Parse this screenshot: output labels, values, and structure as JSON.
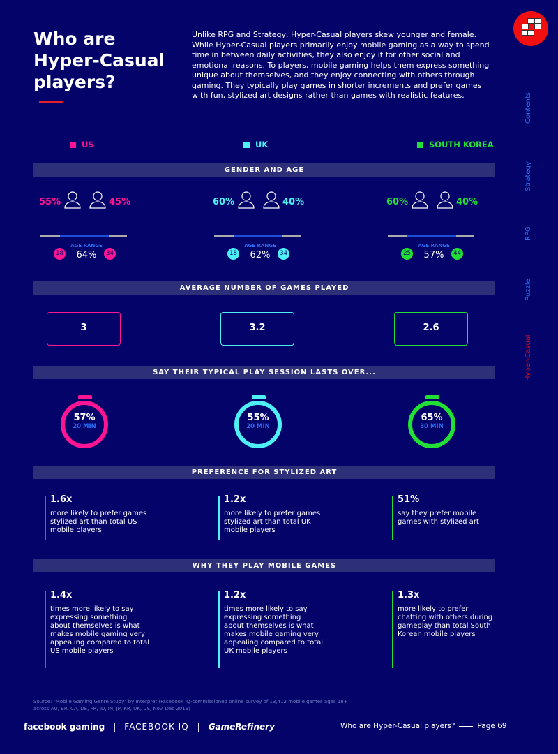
{
  "title": "Who are Hyper-Casual players?",
  "intro": "Unlike RPG and Strategy, Hyper-Casual players skew younger and female. While Hyper-Casual players primarily enjoy mobile gaming as a way to spend time in between daily activities, they also enjoy it for other social and emotional reasons. To players, mobile gaming helps them express something unique about themselves, and they enjoy connecting with others through gaming. They typically play games in shorter increments and prefer games with fun, stylized art designs rather than games with realistic features.",
  "side_nav": [
    "Contents",
    "Strategy",
    "RPG",
    "Puzzle",
    "Hyper-Casual"
  ],
  "side_nav_active": "Hyper-Casual",
  "colors": {
    "background": "#03036a",
    "US": "#ff1493",
    "UK": "#4ff0f5",
    "South Korea": "#22e033",
    "nav": "#2a6cf0",
    "active": "#e8202a"
  },
  "sections": {
    "gender": "GENDER AND AGE",
    "games": "AVERAGE NUMBER OF GAMES PLAYED",
    "session": "SAY THEIR TYPICAL PLAY SESSION LASTS OVER...",
    "art": "PREFERENCE FOR STYLIZED ART",
    "why": "WHY THEY PLAY MOBILE GAMES"
  },
  "age_range_label": "AGE RANGE",
  "countries": [
    {
      "name": "US",
      "female": "55%",
      "male": "45%",
      "age_min": "18",
      "age_max": "34",
      "age_pct": "64%",
      "games": "3",
      "session_pct": "57%",
      "session_min": "20 MIN",
      "art_value": "1.6x",
      "art_text": "more likely to prefer games stylized art than total US mobile players",
      "why_value": "1.4x",
      "why_text": "times more likely to say expressing something about themselves is what makes mobile gaming very appealing compared to total US mobile players"
    },
    {
      "name": "UK",
      "female": "60%",
      "male": "40%",
      "age_min": "18",
      "age_max": "34",
      "age_pct": "62%",
      "games": "3.2",
      "session_pct": "55%",
      "session_min": "20 MIN",
      "art_value": "1.2x",
      "art_text": "more likely to prefer games stylized art than total UK mobile players",
      "why_value": "1.2x",
      "why_text": "times more likely to say expressing something about themselves is what makes mobile gaming very appealing compared to total UK mobile players"
    },
    {
      "name": "SOUTH KOREA",
      "female": "60%",
      "male": "40%",
      "age_min": "25",
      "age_max": "44",
      "age_pct": "57%",
      "games": "2.6",
      "session_pct": "65%",
      "session_min": "30 MIN",
      "art_value": "51%",
      "art_text": "say they prefer mobile games with stylized art",
      "why_value": "1.3x",
      "why_text": "more likely to prefer chatting with others during gameplay than total South Korean mobile players"
    }
  ],
  "source": "Source: \"Mobile Gaming Genre Study\" by Interpret (Facebook IQ-commissioned online survey of 13,412 mobile games ages 18+ across AU, BR, CA, DE, FR, ID, IN, JP, KR, UK, US, Nov–Dec 2019)",
  "footer": {
    "brand1": "facebook gaming",
    "brand2": "FACEBOOK IQ",
    "brand3": "GameRefinery",
    "page_title": "Who are Hyper-Casual players?",
    "page": "Page 69"
  }
}
